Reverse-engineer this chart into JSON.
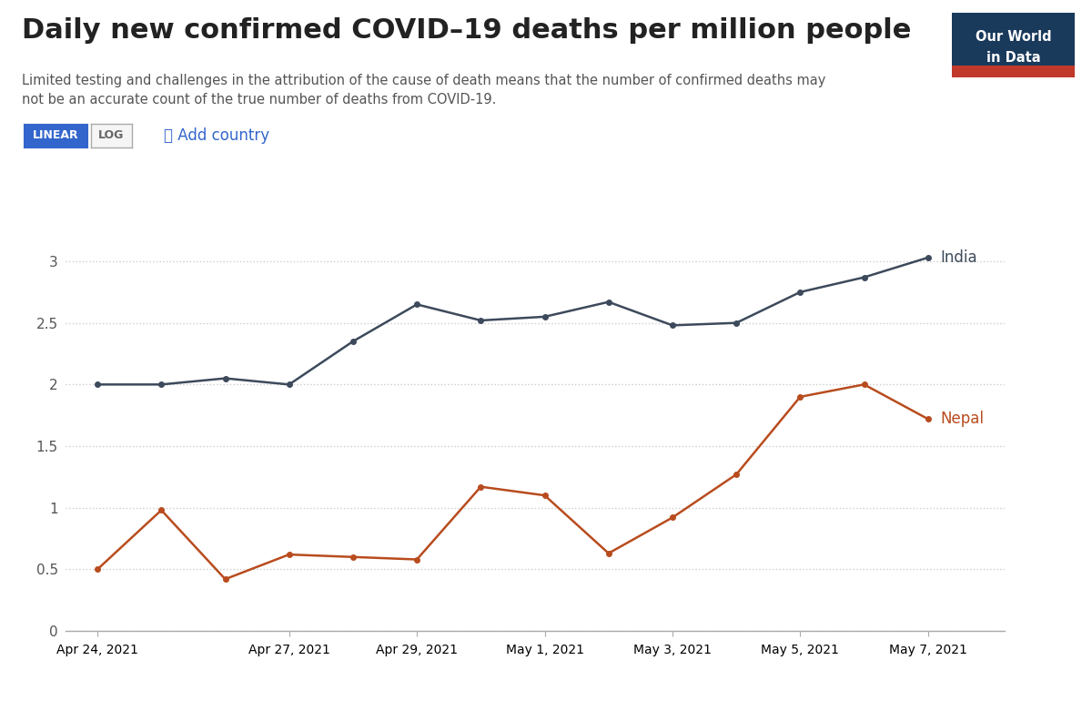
{
  "title": "Daily new confirmed COVID–19 deaths per million people",
  "subtitle": "Limited testing and challenges in the attribution of the cause of death means that the number of confirmed deaths may\nnot be an accurate count of the true number of deaths from COVID-19.",
  "india_color": "#3d4a5c",
  "nepal_color": "#b84c1e",
  "background_color": "#ffffff",
  "grid_color": "#cccccc",
  "x_labels": [
    "Apr 24, 2021",
    "Apr 27, 2021",
    "Apr 29, 2021",
    "May 1, 2021",
    "May 3, 2021",
    "May 5, 2021",
    "May 7, 2021"
  ],
  "x_positions": [
    0,
    3,
    5,
    7,
    9,
    11,
    13
  ],
  "india_x": [
    0,
    1,
    2,
    3,
    4,
    5,
    6,
    7,
    8,
    9,
    10,
    11,
    12,
    13
  ],
  "india_y": [
    2.0,
    2.0,
    2.05,
    2.0,
    2.35,
    2.65,
    2.52,
    2.55,
    2.67,
    2.48,
    2.5,
    2.75,
    2.87,
    3.03
  ],
  "nepal_x": [
    0,
    1,
    2,
    3,
    4,
    5,
    6,
    7,
    8,
    9,
    10,
    11,
    12,
    13
  ],
  "nepal_y": [
    0.5,
    0.98,
    0.42,
    0.62,
    0.6,
    0.58,
    1.17,
    1.1,
    0.63,
    0.92,
    1.27,
    1.9,
    2.0,
    1.72
  ],
  "ylim": [
    0,
    3.3
  ],
  "yticks": [
    0,
    0.5,
    1,
    1.5,
    2,
    2.5,
    3
  ],
  "logo_bg": "#1a3a5c",
  "logo_red": "#c0392b",
  "linear_btn_color": "#3366cc",
  "log_btn_color": "#f0f0f0",
  "marker_size": 4
}
